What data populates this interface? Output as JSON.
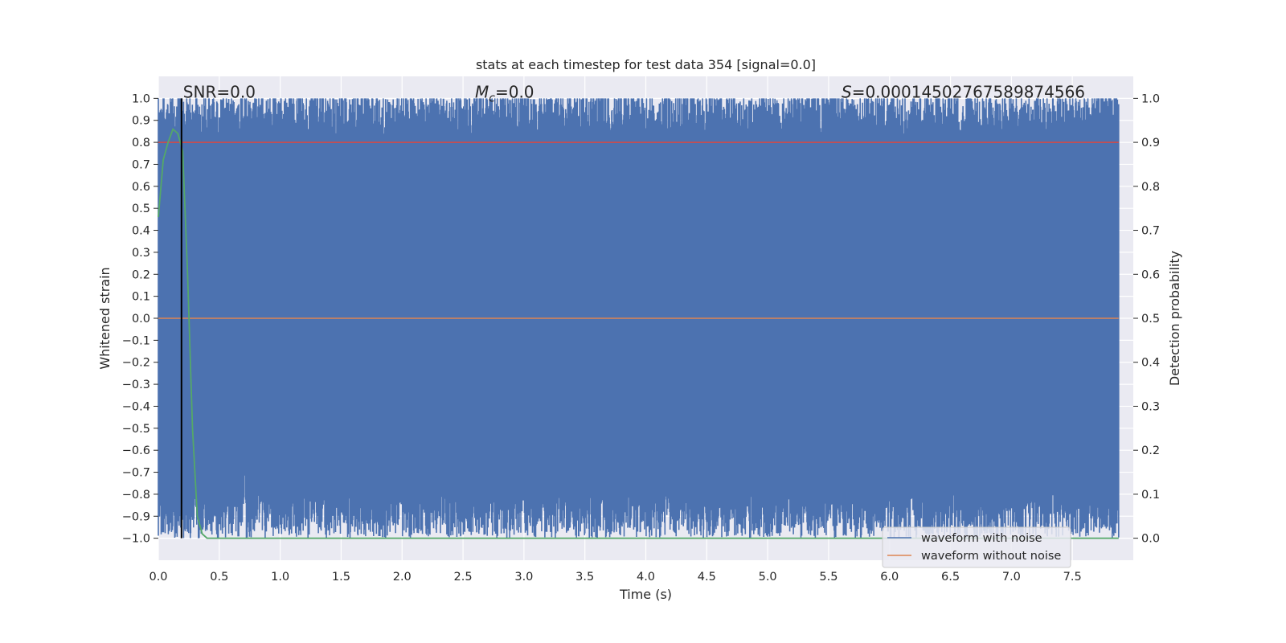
{
  "chart_data": {
    "type": "line",
    "title": "stats at each timestep for test data 354 [signal=0.0]",
    "xlabel": "Time (s)",
    "ylabel": "Whitened strain",
    "y2label": "Detection probability",
    "xlim": [
      0.0,
      8.0
    ],
    "ylim": [
      -1.1,
      1.1
    ],
    "y2lim": [
      -0.05,
      1.05
    ],
    "x_ticks": [
      0.0,
      0.5,
      1.0,
      1.5,
      2.0,
      2.5,
      3.0,
      3.5,
      4.0,
      4.5,
      5.0,
      5.5,
      6.0,
      6.5,
      7.0,
      7.5
    ],
    "x_tick_labels": [
      "0.0",
      "0.5",
      "1.0",
      "1.5",
      "2.0",
      "2.5",
      "3.0",
      "3.5",
      "4.0",
      "4.5",
      "5.0",
      "5.5",
      "6.0",
      "6.5",
      "7.0",
      "7.5"
    ],
    "y_ticks": [
      1.0,
      0.9,
      0.8,
      0.7,
      0.6,
      0.5,
      0.4,
      0.3,
      0.2,
      0.1,
      0.0,
      -0.1,
      -0.2,
      -0.3,
      -0.4,
      -0.5,
      -0.6,
      -0.7,
      -0.8,
      -0.9,
      -1.0
    ],
    "y_tick_labels": [
      "1.0",
      "0.9",
      "0.8",
      "0.7",
      "0.6",
      "0.5",
      "0.4",
      "0.3",
      "0.2",
      "0.1",
      "0.0",
      "−0.1",
      "−0.2",
      "−0.3",
      "−0.4",
      "−0.5",
      "−0.6",
      "−0.7",
      "−0.8",
      "−0.9",
      "−1.0"
    ],
    "y2_ticks": [
      1.0,
      0.9,
      0.8,
      0.7,
      0.6,
      0.5,
      0.4,
      0.3,
      0.2,
      0.1,
      0.0
    ],
    "y2_tick_labels": [
      "1.0",
      "0.9",
      "0.8",
      "0.7",
      "0.6",
      "0.5",
      "0.4",
      "0.3",
      "0.2",
      "0.1",
      "0.0"
    ],
    "grid": true,
    "legend_position": "lower-right",
    "series": [
      {
        "name": "waveform with noise",
        "color": "#4c72b0",
        "description_values": {
          "amplitude_range": [
            -1.0,
            1.0
          ],
          "typical_envelope": [
            -0.85,
            0.9
          ]
        }
      },
      {
        "name": "waveform without noise",
        "color": "#dd8452",
        "x": [
          0.0,
          8.0
        ],
        "values": [
          0.0,
          0.0
        ]
      }
    ],
    "detection_probability": {
      "color": "#55a868",
      "x": [
        0.0,
        0.04,
        0.08,
        0.12,
        0.16,
        0.2,
        0.24,
        0.28,
        0.32,
        0.36,
        0.4,
        8.0
      ],
      "values": [
        0.73,
        0.86,
        0.9,
        0.93,
        0.92,
        0.88,
        0.6,
        0.25,
        0.05,
        0.01,
        0.0,
        0.0
      ]
    },
    "threshold_line": {
      "color": "#c44e52",
      "y2": 0.9
    },
    "event_marker": {
      "color": "#000000",
      "x": 0.19
    },
    "annotations": {
      "snr": "SNR=0.0",
      "mc_symbol": "M",
      "mc_sub": "c",
      "mc_value": "=0.0",
      "s_symbol": "S",
      "s_value": "=0.00014502767589874566"
    }
  }
}
